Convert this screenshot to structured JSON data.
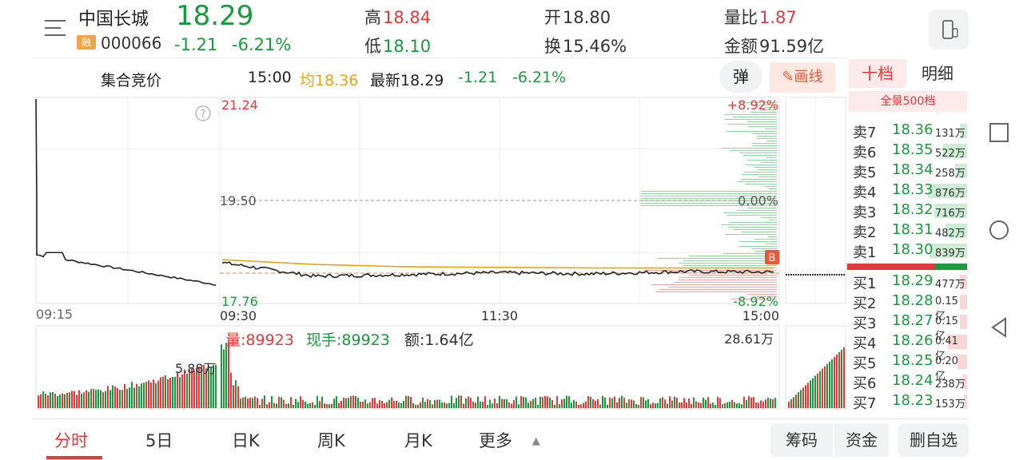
{
  "header": {
    "stock_name": "中国长城",
    "price": "18.29",
    "badge": "融",
    "code": "000066",
    "change_abs": "-1.21",
    "change_pct": "-6.21%",
    "high_label": "高",
    "high_value": "18.84",
    "low_label": "低",
    "low_value": "18.10",
    "open_label": "开",
    "open_value": "18.80",
    "turnover_label": "换",
    "turnover_value": "15.46%",
    "vol_ratio_label": "量比",
    "vol_ratio_value": "1.87",
    "amount_label": "金额",
    "amount_value": "91.59亿"
  },
  "subheader": {
    "auction_label": "集合竞价",
    "time": "15:00",
    "avg_text": "均18.36",
    "latest_text": "最新18.29",
    "latest_abs": "-1.21",
    "latest_pct": "-6.21%",
    "danmu_label": "弹",
    "draw_label": "画线"
  },
  "chart": {
    "price_high_label": "21.24",
    "price_mid_label": "19.50",
    "price_low_label": "17.76",
    "pct_high_label": "+8.92%",
    "pct_mid_label": "0.00%",
    "pct_low_label": "-8.92%",
    "time_labels": [
      "09:15",
      "09:30",
      "11:30",
      "15:00"
    ],
    "volume_label": "量:89923",
    "current_hand_label": "现手:89923",
    "amount_label": "额:1.64亿",
    "vol_max_label": "28.61万",
    "auction_vol_label": "5.88万",
    "help_icon_label": "?",
    "b_marker": "B"
  },
  "chart_data": {
    "type": "line",
    "x_labels": [
      "09:15",
      "09:30",
      "11:30",
      "15:00"
    ],
    "prev_close": 19.5,
    "ylim": [
      17.76,
      21.24
    ],
    "series": [
      {
        "values": [
          18.45,
          18.22,
          18.25,
          18.28,
          18.26,
          18.3,
          18.29
        ]
      },
      {
        "values": [
          18.5,
          18.42,
          18.38,
          18.37,
          18.36,
          18.36,
          18.36
        ]
      }
    ]
  },
  "orderbook": {
    "tab_ten": "十档",
    "tab_detail": "明细",
    "full500": "全景500档",
    "sells": [
      {
        "label": "卖7",
        "price": "18.36",
        "vol": "131万",
        "frac": 0.06
      },
      {
        "label": "卖6",
        "price": "18.35",
        "vol": "522万",
        "frac": 0.2
      },
      {
        "label": "卖5",
        "price": "18.34",
        "vol": "258万",
        "frac": 0.1
      },
      {
        "label": "卖4",
        "price": "18.33",
        "vol": "876万",
        "frac": 0.33
      },
      {
        "label": "卖3",
        "price": "18.32",
        "vol": "716万",
        "frac": 0.28
      },
      {
        "label": "卖2",
        "price": "18.31",
        "vol": "482万",
        "frac": 0.18
      },
      {
        "label": "卖1",
        "price": "18.30",
        "vol": "839万",
        "frac": 0.32
      }
    ],
    "buys": [
      {
        "label": "买1",
        "price": "18.29",
        "vol": "477万",
        "frac": 0.06
      },
      {
        "label": "买2",
        "price": "18.28",
        "vol": "0.15亿",
        "frac": 0.06
      },
      {
        "label": "买3",
        "price": "18.27",
        "vol": "0.15亿",
        "frac": 0.06
      },
      {
        "label": "买4",
        "price": "18.26",
        "vol": "0.41亿",
        "frac": 0.16
      },
      {
        "label": "买5",
        "price": "18.25",
        "vol": "0.20亿",
        "frac": 0.08
      },
      {
        "label": "买6",
        "price": "18.24",
        "vol": "238万",
        "frac": 0.04
      },
      {
        "label": "买7",
        "price": "18.23",
        "vol": "153万",
        "frac": 0.03
      }
    ]
  },
  "bottom_nav": {
    "tabs": [
      "分时",
      "5日",
      "日K",
      "周K",
      "月K",
      "更多"
    ],
    "chips": "筹码",
    "funds": "资金",
    "watchlist": "删自选"
  },
  "colors": {
    "up": "#e23b3b",
    "down": "#1a9a3c",
    "avg": "#e8a316"
  }
}
